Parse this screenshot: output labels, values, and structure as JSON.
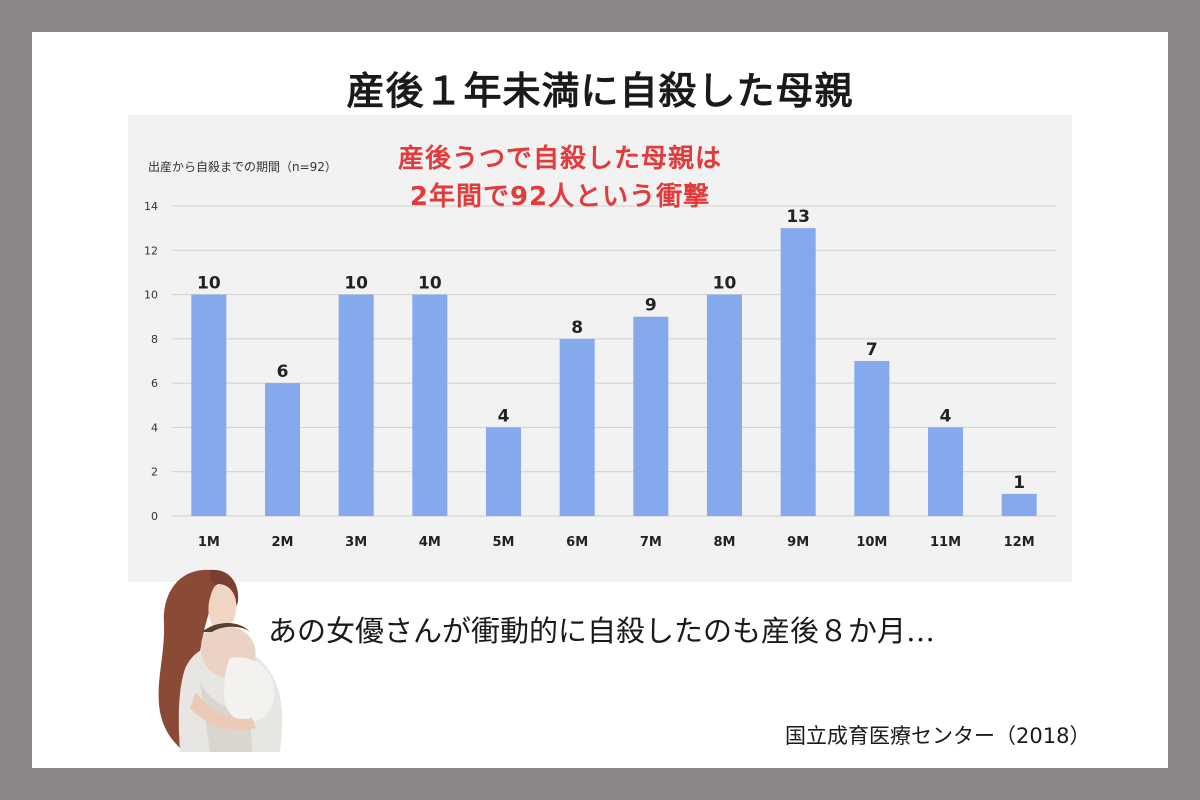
{
  "header": {
    "title": "産後１年未満に自殺した母親"
  },
  "callout": {
    "line1": "産後うつで自殺した母親は",
    "line2": "2年間で92人という衝撃"
  },
  "chart_data": {
    "type": "bar",
    "subtitle": "出産から自殺までの期間（n=92）",
    "categories": [
      "1M",
      "2M",
      "3M",
      "4M",
      "5M",
      "6M",
      "7M",
      "8M",
      "9M",
      "10M",
      "11M",
      "12M"
    ],
    "values": [
      10,
      6,
      10,
      10,
      4,
      8,
      9,
      10,
      13,
      7,
      4,
      1
    ],
    "ylim": [
      0,
      14
    ],
    "yticks": [
      0,
      2,
      4,
      6,
      8,
      10,
      12,
      14
    ],
    "grid": true,
    "bar_color": "#84a9ec",
    "xlabel": "",
    "ylabel": ""
  },
  "footer": {
    "comment": "あの女優さんが衝動的に自殺したのも産後８か月…",
    "source": "国立成育医療センター（2018）"
  },
  "colors": {
    "background": "#8a8685",
    "card": "#ffffff",
    "accent_red": "#e23b3b"
  },
  "illustration": {
    "icon": "mother-holding-baby-illustration"
  }
}
